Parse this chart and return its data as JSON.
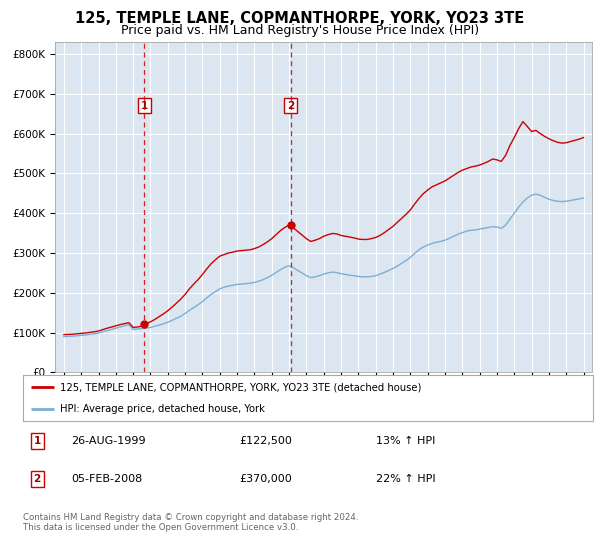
{
  "title": "125, TEMPLE LANE, COPMANTHORPE, YORK, YO23 3TE",
  "subtitle": "Price paid vs. HM Land Registry's House Price Index (HPI)",
  "title_fontsize": 10.5,
  "subtitle_fontsize": 9,
  "background_color": "#ffffff",
  "plot_bg_color": "#dce6f1",
  "grid_color": "#ffffff",
  "red_line_color": "#cc0000",
  "blue_line_color": "#7bafd4",
  "sale1_date": 1999.65,
  "sale1_price": 122500,
  "sale1_label": "1",
  "sale1_date_str": "26-AUG-1999",
  "sale1_hpi_str": "13% ↑ HPI",
  "sale2_date": 2008.09,
  "sale2_price": 370000,
  "sale2_label": "2",
  "sale2_date_str": "05-FEB-2008",
  "sale2_hpi_str": "22% ↑ HPI",
  "ylim": [
    0,
    830000
  ],
  "xlim_start": 1994.5,
  "xlim_end": 2025.5,
  "yticks": [
    0,
    100000,
    200000,
    300000,
    400000,
    500000,
    600000,
    700000,
    800000
  ],
  "ytick_labels": [
    "£0",
    "£100K",
    "£200K",
    "£300K",
    "£400K",
    "£500K",
    "£600K",
    "£700K",
    "£800K"
  ],
  "xtick_years": [
    1995,
    1996,
    1997,
    1998,
    1999,
    2000,
    2001,
    2002,
    2003,
    2004,
    2005,
    2006,
    2007,
    2008,
    2009,
    2010,
    2011,
    2012,
    2013,
    2014,
    2015,
    2016,
    2017,
    2018,
    2019,
    2020,
    2021,
    2022,
    2023,
    2024,
    2025
  ],
  "legend_red_label": "125, TEMPLE LANE, COPMANTHORPE, YORK, YO23 3TE (detached house)",
  "legend_blue_label": "HPI: Average price, detached house, York",
  "footer1": "Contains HM Land Registry data © Crown copyright and database right 2024.",
  "footer2": "This data is licensed under the Open Government Licence v3.0.",
  "years_hpi": [
    1995,
    1995.25,
    1995.5,
    1995.75,
    1996,
    1996.25,
    1996.5,
    1996.75,
    1997,
    1997.25,
    1997.5,
    1997.75,
    1998,
    1998.25,
    1998.5,
    1998.75,
    1999,
    1999.25,
    1999.5,
    1999.75,
    2000,
    2000.25,
    2000.5,
    2000.75,
    2001,
    2001.25,
    2001.5,
    2001.75,
    2002,
    2002.25,
    2002.5,
    2002.75,
    2003,
    2003.25,
    2003.5,
    2003.75,
    2004,
    2004.25,
    2004.5,
    2004.75,
    2005,
    2005.25,
    2005.5,
    2005.75,
    2006,
    2006.25,
    2006.5,
    2006.75,
    2007,
    2007.25,
    2007.5,
    2007.75,
    2008,
    2008.25,
    2008.5,
    2008.75,
    2009,
    2009.25,
    2009.5,
    2009.75,
    2010,
    2010.25,
    2010.5,
    2010.75,
    2011,
    2011.25,
    2011.5,
    2011.75,
    2012,
    2012.25,
    2012.5,
    2012.75,
    2013,
    2013.25,
    2013.5,
    2013.75,
    2014,
    2014.25,
    2014.5,
    2014.75,
    2015,
    2015.25,
    2015.5,
    2015.75,
    2016,
    2016.25,
    2016.5,
    2016.75,
    2017,
    2017.25,
    2017.5,
    2017.75,
    2018,
    2018.25,
    2018.5,
    2018.75,
    2019,
    2019.25,
    2019.5,
    2019.75,
    2020,
    2020.25,
    2020.5,
    2020.75,
    2021,
    2021.25,
    2021.5,
    2021.75,
    2022,
    2022.25,
    2022.5,
    2022.75,
    2023,
    2023.25,
    2023.5,
    2023.75,
    2024,
    2024.25,
    2024.5,
    2024.75,
    2025
  ],
  "hpi_vals": [
    90000,
    90500,
    91000,
    92000,
    93000,
    94000,
    95500,
    97000,
    99000,
    102000,
    105000,
    108000,
    111000,
    114000,
    117000,
    120000,
    108000,
    109000,
    110000,
    111000,
    113000,
    116000,
    119000,
    122000,
    126000,
    131000,
    136000,
    141000,
    148000,
    156000,
    163000,
    170000,
    178000,
    187000,
    196000,
    203000,
    210000,
    214000,
    217000,
    219000,
    221000,
    222000,
    223000,
    224000,
    226000,
    229000,
    233000,
    238000,
    244000,
    251000,
    258000,
    264000,
    268000,
    263000,
    256000,
    250000,
    243000,
    238000,
    240000,
    243000,
    247000,
    250000,
    252000,
    251000,
    248000,
    246000,
    244000,
    243000,
    241000,
    240000,
    240000,
    241000,
    243000,
    247000,
    251000,
    256000,
    261000,
    267000,
    274000,
    281000,
    289000,
    299000,
    308000,
    315000,
    320000,
    324000,
    327000,
    329000,
    332000,
    337000,
    342000,
    347000,
    351000,
    355000,
    357000,
    358000,
    360000,
    362000,
    364000,
    366000,
    365000,
    362000,
    370000,
    385000,
    400000,
    415000,
    428000,
    438000,
    445000,
    448000,
    445000,
    440000,
    435000,
    432000,
    430000,
    429000,
    430000,
    432000,
    434000,
    436000,
    438000
  ],
  "red_vals": [
    95000,
    95500,
    96000,
    97000,
    98000,
    99000,
    100500,
    102000,
    104000,
    107500,
    111000,
    114000,
    117000,
    120000,
    122500,
    125000,
    113000,
    114000,
    116000,
    122500,
    127000,
    133000,
    140000,
    147000,
    155000,
    164000,
    174000,
    184000,
    196000,
    210000,
    222000,
    233000,
    246000,
    260000,
    273000,
    283000,
    292000,
    296000,
    300000,
    302000,
    305000,
    306000,
    307000,
    308000,
    311000,
    315000,
    321000,
    328000,
    336000,
    346000,
    356000,
    364000,
    370000,
    363000,
    354000,
    345000,
    336000,
    329000,
    332000,
    336000,
    342000,
    346000,
    349000,
    348000,
    344000,
    342000,
    340000,
    338000,
    335000,
    334000,
    334000,
    336000,
    339000,
    344000,
    351000,
    359000,
    367000,
    377000,
    387000,
    397000,
    408000,
    423000,
    437000,
    449000,
    458000,
    466000,
    471000,
    476000,
    481000,
    488000,
    495000,
    502000,
    508000,
    512000,
    516000,
    518000,
    521000,
    525000,
    530000,
    536000,
    534000,
    530000,
    545000,
    570000,
    590000,
    612000,
    630000,
    618000,
    605000,
    608000,
    600000,
    593000,
    587000,
    582000,
    578000,
    576000,
    577000,
    580000,
    583000,
    586000,
    590000
  ]
}
